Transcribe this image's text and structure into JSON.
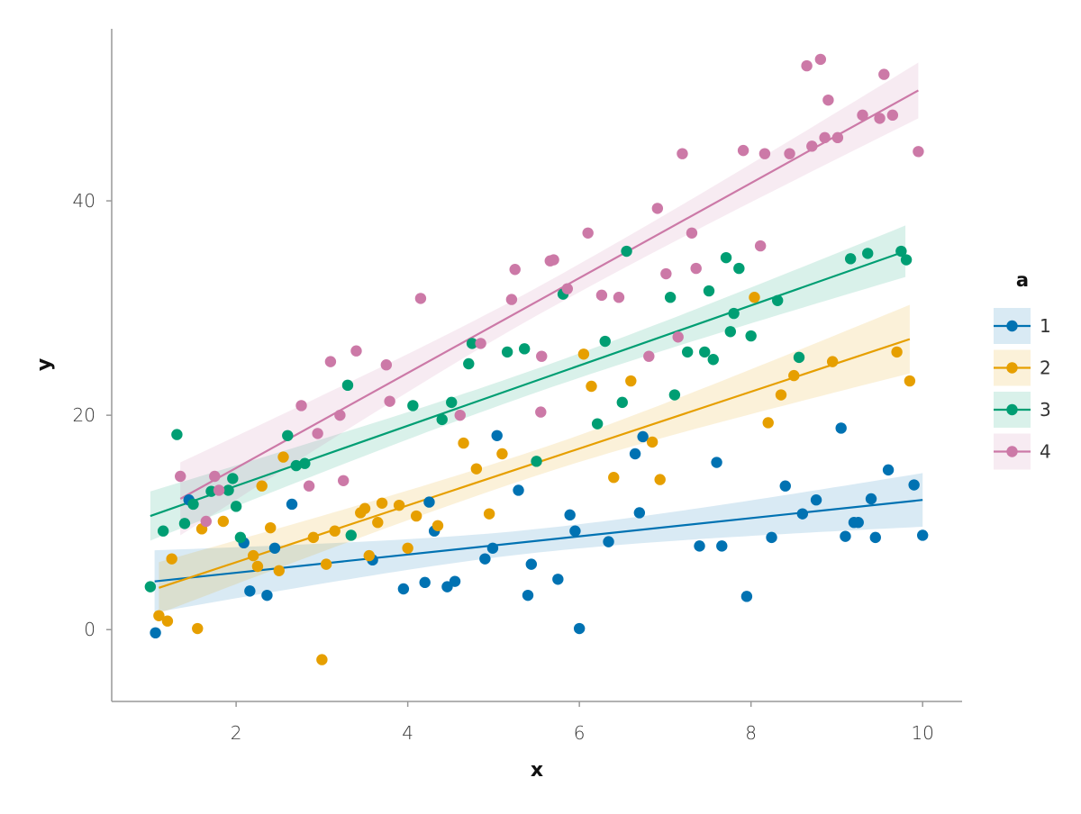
{
  "chart_data": {
    "type": "scatter",
    "title": "",
    "xlabel": "x",
    "ylabel": "y",
    "xlim": [
      0.55,
      10.46
    ],
    "ylim": [
      -6.7,
      56.05
    ],
    "xticks": [
      2,
      4,
      6,
      8,
      10
    ],
    "xtick_labels": [
      "2",
      "4",
      "6",
      "8",
      "10"
    ],
    "yticks": [
      0,
      20,
      40
    ],
    "ytick_labels": [
      "0",
      "20",
      "40"
    ],
    "grid": false,
    "legend": {
      "title": "a",
      "placement": "right"
    },
    "series": [
      {
        "name": "1",
        "color": "#0072B2",
        "fit": {
          "x": [
            1.05,
            10.0
          ],
          "y": [
            4.5,
            12.1
          ]
        },
        "ci_halfwidth": {
          "start": 2.9,
          "center": 1.1,
          "end": 2.5
        },
        "points": [
          [
            1.06,
            -0.3
          ],
          [
            1.45,
            12.1
          ],
          [
            2.09,
            8.1
          ],
          [
            2.16,
            3.6
          ],
          [
            2.36,
            3.2
          ],
          [
            2.45,
            7.6
          ],
          [
            2.65,
            11.7
          ],
          [
            3.59,
            6.5
          ],
          [
            3.95,
            3.8
          ],
          [
            4.2,
            4.4
          ],
          [
            4.25,
            11.9
          ],
          [
            4.31,
            9.2
          ],
          [
            4.46,
            4.0
          ],
          [
            4.55,
            4.5
          ],
          [
            4.9,
            6.6
          ],
          [
            4.99,
            7.6
          ],
          [
            5.04,
            18.1
          ],
          [
            5.29,
            13.0
          ],
          [
            5.4,
            3.2
          ],
          [
            5.44,
            6.1
          ],
          [
            5.75,
            4.7
          ],
          [
            5.89,
            10.7
          ],
          [
            6.0,
            0.1
          ],
          [
            5.95,
            9.2
          ],
          [
            6.34,
            8.2
          ],
          [
            6.65,
            16.4
          ],
          [
            6.7,
            10.9
          ],
          [
            6.74,
            18.0
          ],
          [
            7.4,
            7.8
          ],
          [
            7.6,
            15.6
          ],
          [
            7.66,
            7.8
          ],
          [
            7.95,
            3.1
          ],
          [
            8.24,
            8.6
          ],
          [
            8.4,
            13.4
          ],
          [
            8.6,
            10.8
          ],
          [
            8.76,
            12.1
          ],
          [
            9.05,
            18.8
          ],
          [
            9.1,
            8.7
          ],
          [
            9.2,
            10.0
          ],
          [
            9.25,
            10.0
          ],
          [
            9.4,
            12.2
          ],
          [
            9.45,
            8.6
          ],
          [
            9.6,
            14.9
          ],
          [
            9.9,
            13.5
          ],
          [
            10.0,
            8.8
          ]
        ]
      },
      {
        "name": "2",
        "color": "#E69F00",
        "fit": {
          "x": [
            1.1,
            9.85
          ],
          "y": [
            3.9,
            27.1
          ]
        },
        "ci_halfwidth": {
          "start": 2.4,
          "center": 1.2,
          "end": 3.2
        },
        "points": [
          [
            1.1,
            1.3
          ],
          [
            1.2,
            0.8
          ],
          [
            1.25,
            6.6
          ],
          [
            1.55,
            0.1
          ],
          [
            1.6,
            9.4
          ],
          [
            1.85,
            10.1
          ],
          [
            2.2,
            6.9
          ],
          [
            2.25,
            5.9
          ],
          [
            2.3,
            13.4
          ],
          [
            2.4,
            9.5
          ],
          [
            2.5,
            5.5
          ],
          [
            2.55,
            16.1
          ],
          [
            2.9,
            8.6
          ],
          [
            3.0,
            -2.8
          ],
          [
            3.05,
            6.1
          ],
          [
            3.15,
            9.2
          ],
          [
            3.45,
            10.9
          ],
          [
            3.5,
            11.3
          ],
          [
            3.55,
            6.9
          ],
          [
            3.65,
            10.0
          ],
          [
            3.7,
            11.8
          ],
          [
            3.9,
            11.6
          ],
          [
            4.0,
            7.6
          ],
          [
            4.1,
            10.6
          ],
          [
            4.35,
            9.7
          ],
          [
            4.65,
            17.4
          ],
          [
            4.8,
            15.0
          ],
          [
            4.95,
            10.8
          ],
          [
            5.1,
            16.4
          ],
          [
            6.05,
            25.7
          ],
          [
            6.14,
            22.7
          ],
          [
            6.4,
            14.2
          ],
          [
            6.6,
            23.2
          ],
          [
            6.85,
            17.5
          ],
          [
            6.94,
            14.0
          ],
          [
            8.04,
            31.0
          ],
          [
            8.2,
            19.3
          ],
          [
            8.35,
            21.9
          ],
          [
            8.5,
            23.7
          ],
          [
            8.95,
            25.0
          ],
          [
            9.7,
            25.9
          ],
          [
            9.85,
            23.2
          ]
        ]
      },
      {
        "name": "3",
        "color": "#009E73",
        "fit": {
          "x": [
            1.0,
            9.8
          ],
          "y": [
            10.6,
            35.3
          ]
        },
        "ci_halfwidth": {
          "start": 2.3,
          "center": 1.1,
          "end": 2.4
        },
        "points": [
          [
            1.0,
            4.0
          ],
          [
            1.15,
            9.2
          ],
          [
            1.31,
            18.2
          ],
          [
            1.4,
            9.9
          ],
          [
            1.5,
            11.7
          ],
          [
            1.71,
            12.9
          ],
          [
            1.91,
            13.0
          ],
          [
            1.96,
            14.1
          ],
          [
            2.0,
            11.5
          ],
          [
            2.05,
            8.6
          ],
          [
            2.6,
            18.1
          ],
          [
            2.7,
            15.3
          ],
          [
            2.8,
            15.5
          ],
          [
            3.3,
            22.8
          ],
          [
            3.34,
            8.8
          ],
          [
            4.06,
            20.9
          ],
          [
            4.4,
            19.6
          ],
          [
            4.51,
            21.2
          ],
          [
            4.71,
            24.8
          ],
          [
            4.75,
            26.7
          ],
          [
            5.16,
            25.9
          ],
          [
            5.36,
            26.2
          ],
          [
            5.5,
            15.7
          ],
          [
            5.81,
            31.3
          ],
          [
            6.21,
            19.2
          ],
          [
            6.3,
            26.9
          ],
          [
            6.5,
            21.2
          ],
          [
            6.55,
            35.3
          ],
          [
            7.06,
            31.0
          ],
          [
            7.11,
            21.9
          ],
          [
            7.26,
            25.9
          ],
          [
            7.51,
            31.6
          ],
          [
            7.46,
            25.9
          ],
          [
            7.56,
            25.2
          ],
          [
            7.71,
            34.7
          ],
          [
            7.76,
            27.8
          ],
          [
            7.8,
            29.5
          ],
          [
            7.86,
            33.7
          ],
          [
            8.0,
            27.4
          ],
          [
            8.31,
            30.7
          ],
          [
            8.56,
            25.4
          ],
          [
            9.16,
            34.6
          ],
          [
            9.36,
            35.1
          ],
          [
            9.75,
            35.3
          ],
          [
            9.81,
            34.5
          ]
        ]
      },
      {
        "name": "4",
        "color": "#CC79A7",
        "fit": {
          "x": [
            1.35,
            9.95
          ],
          "y": [
            12.2,
            50.3
          ]
        },
        "ci_halfwidth": {
          "start": 3.4,
          "center": 1.3,
          "end": 2.6
        },
        "points": [
          [
            1.35,
            14.3
          ],
          [
            1.65,
            10.1
          ],
          [
            1.75,
            14.3
          ],
          [
            1.8,
            13.0
          ],
          [
            2.76,
            20.9
          ],
          [
            2.85,
            13.4
          ],
          [
            2.95,
            18.3
          ],
          [
            3.1,
            25.0
          ],
          [
            3.21,
            20.0
          ],
          [
            3.25,
            13.9
          ],
          [
            3.4,
            26.0
          ],
          [
            3.75,
            24.7
          ],
          [
            3.79,
            21.3
          ],
          [
            4.15,
            30.9
          ],
          [
            4.61,
            20.0
          ],
          [
            4.85,
            26.7
          ],
          [
            5.21,
            30.8
          ],
          [
            5.25,
            33.6
          ],
          [
            5.56,
            25.5
          ],
          [
            5.55,
            20.3
          ],
          [
            5.66,
            34.4
          ],
          [
            5.7,
            34.5
          ],
          [
            5.86,
            31.8
          ],
          [
            6.1,
            37.0
          ],
          [
            6.26,
            31.2
          ],
          [
            6.46,
            31.0
          ],
          [
            6.81,
            25.5
          ],
          [
            6.91,
            39.3
          ],
          [
            7.01,
            33.2
          ],
          [
            7.2,
            44.4
          ],
          [
            7.31,
            37.0
          ],
          [
            7.15,
            27.3
          ],
          [
            7.36,
            33.7
          ],
          [
            7.91,
            44.7
          ],
          [
            8.11,
            35.8
          ],
          [
            8.16,
            44.4
          ],
          [
            8.45,
            44.4
          ],
          [
            8.65,
            52.6
          ],
          [
            8.71,
            45.1
          ],
          [
            8.81,
            53.2
          ],
          [
            8.86,
            45.9
          ],
          [
            8.9,
            49.4
          ],
          [
            9.01,
            45.9
          ],
          [
            9.3,
            48.0
          ],
          [
            9.5,
            47.7
          ],
          [
            9.55,
            51.8
          ],
          [
            9.65,
            48.0
          ],
          [
            9.95,
            44.6
          ]
        ]
      }
    ]
  }
}
